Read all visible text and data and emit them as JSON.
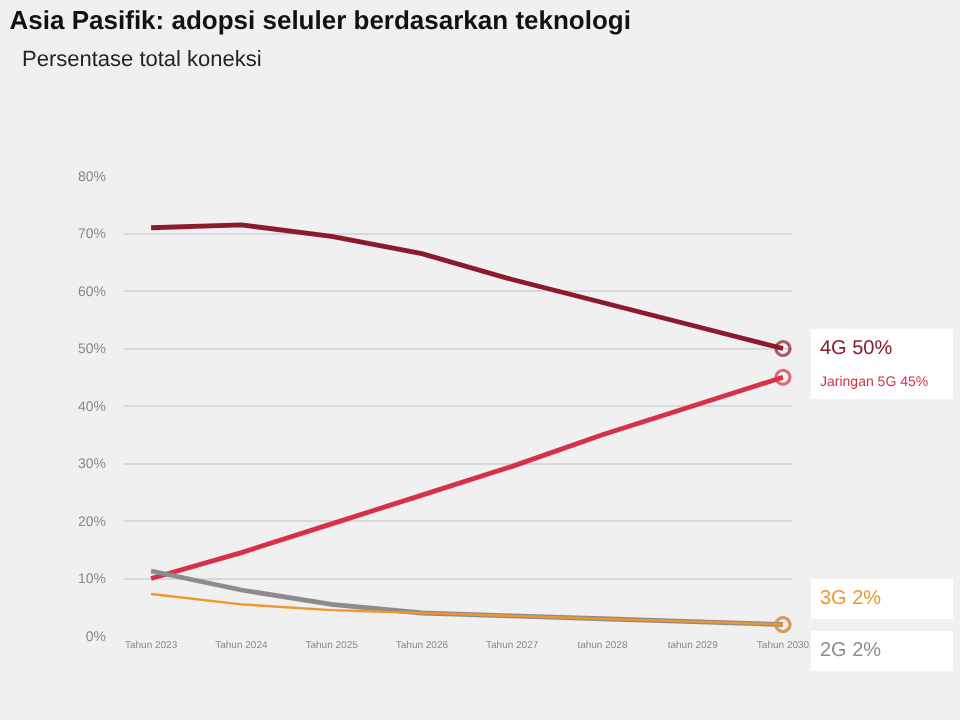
{
  "chart_data": {
    "type": "line",
    "title": "Asia Pasifik: adopsi seluler berdasarkan teknologi",
    "subtitle": "Persentase total koneksi",
    "categories": [
      "Tahun 2023",
      "Tahun 2024",
      "Tahun 2025",
      "Tahun 2026",
      "Tahun 2027",
      "tahun 2028",
      "tahun 2029",
      "Tahun 2030"
    ],
    "series": [
      {
        "name": "4G",
        "color": "#8b1a2b",
        "values": [
          71,
          71.5,
          69.5,
          66.5,
          62,
          58,
          54,
          50
        ],
        "value_labels": [
          null,
          null,
          null,
          null,
          null,
          null,
          null,
          "50%"
        ]
      },
      {
        "name": "Jaringan 5G",
        "color": "#d6304a",
        "values": [
          10,
          14.5,
          19.5,
          24.5,
          29.5,
          35,
          40,
          45
        ],
        "value_labels": [
          null,
          null,
          null,
          null,
          null,
          null,
          null,
          "45%"
        ]
      },
      {
        "name": "2G",
        "color": "#8c8c8c",
        "values": [
          11.3,
          8,
          5.5,
          4,
          3.5,
          3,
          2.5,
          2
        ],
        "value_labels": [
          null,
          null,
          null,
          null,
          null,
          null,
          null,
          "2%"
        ]
      },
      {
        "name": "3G",
        "color": "#f0962e",
        "values": [
          7.3,
          5.5,
          4.5,
          4,
          3.5,
          3,
          2.5,
          2
        ],
        "value_labels": [
          null,
          null,
          null,
          null,
          null,
          null,
          null,
          "2%"
        ]
      }
    ],
    "ylim": [
      0,
      80
    ],
    "yticks": [
      {
        "value": 0,
        "label": "0%"
      },
      {
        "value": 10,
        "label": "10%"
      },
      {
        "value": 20,
        "label": "20%"
      },
      {
        "value": 30,
        "label": "30%"
      },
      {
        "value": 40,
        "label": "40%"
      },
      {
        "value": 50,
        "label": "50%"
      },
      {
        "value": 60,
        "label": "60%"
      },
      {
        "value": 70,
        "label": "70%"
      },
      {
        "value": 80,
        "label": "80%"
      }
    ],
    "grid": "y",
    "legend": false,
    "line_style": "solid"
  }
}
